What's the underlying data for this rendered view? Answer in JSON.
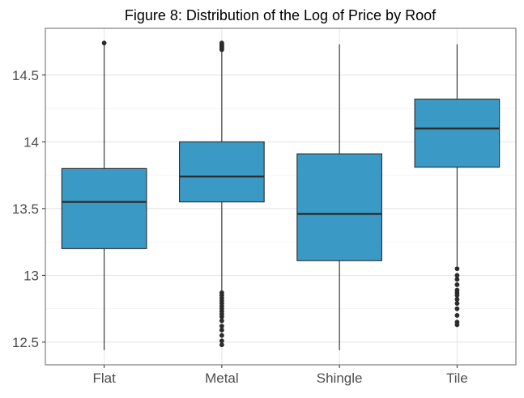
{
  "chart_data": {
    "type": "box",
    "title": "Figure 8: Distribution of the Log of Price by Roof",
    "xlabel": "",
    "ylabel": "",
    "categories": [
      "Flat",
      "Metal",
      "Shingle",
      "Tile"
    ],
    "y_ticks": [
      12.5,
      13,
      13.5,
      14,
      14.5
    ],
    "y_tick_labels": [
      "12.5",
      "13",
      "13.5",
      "14",
      "14.5"
    ],
    "ylim": [
      12.33,
      14.85
    ],
    "grid": true,
    "colors": {
      "box_fill": "#3b9ac5",
      "box_stroke": "#2b2b2b",
      "median": "#2b2b2b",
      "outlier": "#2b2b2b",
      "grid": "#e6e6e6",
      "panel_border": "#7f7f7f"
    },
    "boxes": [
      {
        "category": "Flat",
        "whisker_low": 12.44,
        "q1": 13.2,
        "median": 13.55,
        "q3": 13.8,
        "whisker_high": 14.73,
        "outliers": [
          14.74
        ]
      },
      {
        "category": "Metal",
        "whisker_low": 12.88,
        "q1": 13.55,
        "median": 13.74,
        "q3": 14.0,
        "whisker_high": 14.68,
        "outliers": [
          14.69,
          14.7,
          14.71,
          14.72,
          14.73,
          14.74,
          12.87,
          12.85,
          12.83,
          12.81,
          12.79,
          12.77,
          12.75,
          12.73,
          12.71,
          12.69,
          12.66,
          12.62,
          12.59,
          12.55,
          12.51,
          12.48
        ]
      },
      {
        "category": "Shingle",
        "whisker_low": 12.44,
        "q1": 13.11,
        "median": 13.46,
        "q3": 13.91,
        "whisker_high": 14.73,
        "outliers": []
      },
      {
        "category": "Tile",
        "whisker_low": 13.07,
        "q1": 13.81,
        "median": 14.1,
        "q3": 14.32,
        "whisker_high": 14.73,
        "outliers": [
          13.05,
          13.0,
          12.97,
          12.93,
          12.89,
          12.87,
          12.85,
          12.82,
          12.79,
          12.75,
          12.7,
          12.65,
          12.63
        ]
      }
    ]
  }
}
